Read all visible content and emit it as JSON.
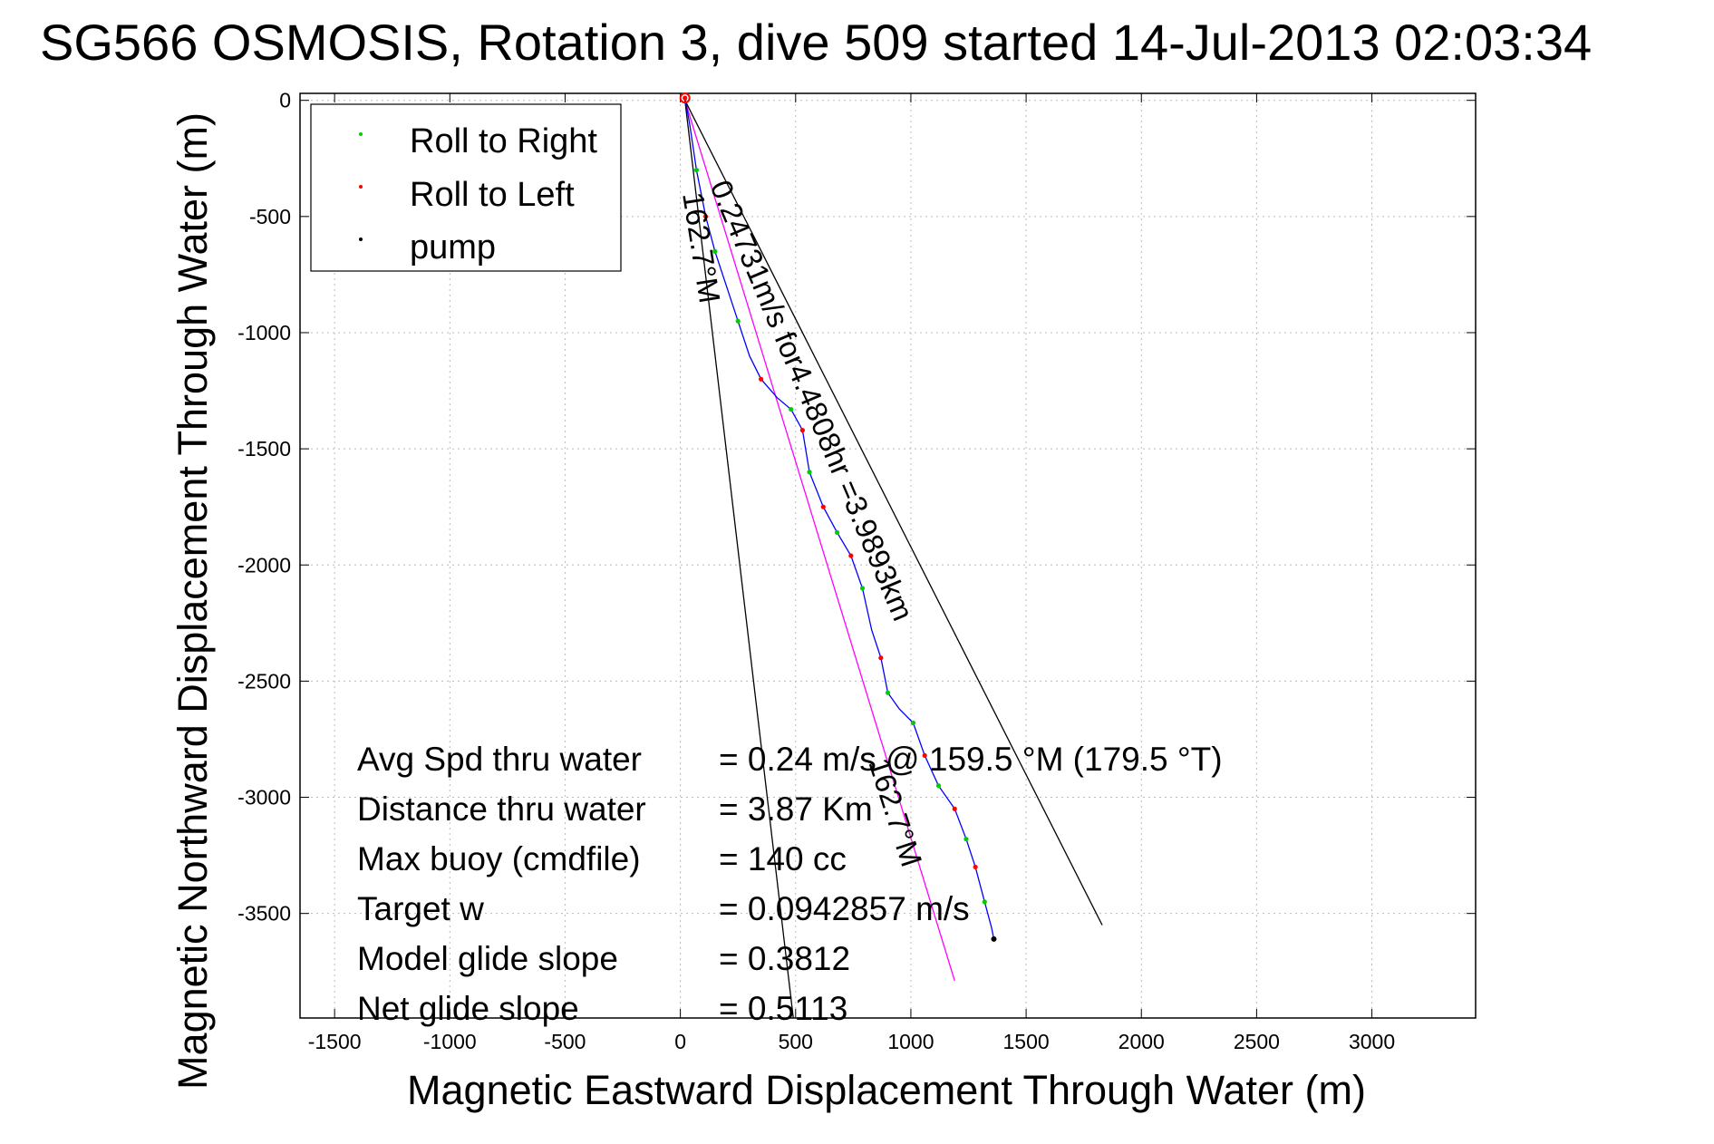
{
  "chart_data": {
    "type": "scatter",
    "title": "SG566 OSMOSIS, Rotation 3, dive 509 started 14-Jul-2013 02:03:34",
    "xlabel": "Magnetic Eastward Displacement Through Water (m)",
    "ylabel": "Magnetic Northward Displacement Through Water (m)",
    "xlim": [
      -1650,
      3450
    ],
    "ylim": [
      -3950,
      30
    ],
    "grid": true,
    "x_ticks": [
      -1500,
      -1000,
      -500,
      0,
      500,
      1000,
      1500,
      2000,
      2500,
      3000
    ],
    "y_ticks": [
      0,
      -500,
      -1000,
      -1500,
      -2000,
      -2500,
      -3000,
      -3500
    ],
    "legend": {
      "position": "top-left",
      "entries": [
        {
          "label": "Roll to Right",
          "color": "#00cc00"
        },
        {
          "label": "Roll to Left",
          "color": "#ff0000"
        },
        {
          "label": "pump",
          "color": "#000000"
        }
      ]
    },
    "track": {
      "color": "#0000ff",
      "points": [
        [
          20,
          10
        ],
        [
          40,
          -100
        ],
        [
          70,
          -300
        ],
        [
          110,
          -500
        ],
        [
          150,
          -650
        ],
        [
          200,
          -800
        ],
        [
          250,
          -950
        ],
        [
          300,
          -1100
        ],
        [
          350,
          -1200
        ],
        [
          420,
          -1280
        ],
        [
          480,
          -1330
        ],
        [
          530,
          -1420
        ],
        [
          560,
          -1600
        ],
        [
          620,
          -1750
        ],
        [
          680,
          -1860
        ],
        [
          740,
          -1960
        ],
        [
          790,
          -2100
        ],
        [
          830,
          -2280
        ],
        [
          870,
          -2400
        ],
        [
          900,
          -2550
        ],
        [
          950,
          -2620
        ],
        [
          1010,
          -2680
        ],
        [
          1060,
          -2820
        ],
        [
          1120,
          -2950
        ],
        [
          1190,
          -3050
        ],
        [
          1240,
          -3180
        ],
        [
          1280,
          -3300
        ],
        [
          1320,
          -3450
        ],
        [
          1350,
          -3560
        ],
        [
          1360,
          -3610
        ]
      ]
    },
    "roll_right": [
      [
        70,
        -300
      ],
      [
        150,
        -650
      ],
      [
        250,
        -950
      ],
      [
        480,
        -1330
      ],
      [
        560,
        -1600
      ],
      [
        680,
        -1860
      ],
      [
        790,
        -2100
      ],
      [
        900,
        -2550
      ],
      [
        1010,
        -2680
      ],
      [
        1120,
        -2950
      ],
      [
        1240,
        -3180
      ],
      [
        1320,
        -3450
      ]
    ],
    "roll_left": [
      [
        20,
        10
      ],
      [
        110,
        -500
      ],
      [
        350,
        -1200
      ],
      [
        530,
        -1420
      ],
      [
        620,
        -1750
      ],
      [
        740,
        -1960
      ],
      [
        870,
        -2400
      ],
      [
        1060,
        -2820
      ],
      [
        1190,
        -3050
      ],
      [
        1280,
        -3300
      ]
    ],
    "pump": [
      [
        1360,
        -3610
      ]
    ],
    "lines": [
      {
        "name": "",
        "color": "#ff00ff",
        "from": [
          20,
          0
        ],
        "to": [
          1190,
          -3790
        ]
      },
      {
        "name": "",
        "color": "#000000",
        "from": [
          20,
          0
        ],
        "to": [
          490,
          -3950
        ]
      },
      {
        "name": "",
        "color": "#000000",
        "from": [
          20,
          0
        ],
        "to": [
          1830,
          -3550
        ]
      }
    ],
    "annotations": {
      "current": "0.24731m/s for4.4808hr =3.9893km",
      "heading_left": "162.7°M",
      "heading_mid": "162.7°M"
    },
    "stats": [
      {
        "label": "Avg Spd thru water",
        "value": "=  0.24 m/s @ 159.5 °M (179.5 °T)"
      },
      {
        "label": "Distance thru water",
        "value": "=  3.87 Km"
      },
      {
        "label": "Max buoy (cmdfile)",
        "value": "= 140 cc"
      },
      {
        "label": "Target w",
        "value": "= 0.0942857 m/s"
      },
      {
        "label": "Model glide slope",
        "value": "= 0.3812"
      },
      {
        "label": "Net glide slope",
        "value": "= 0.5113"
      }
    ]
  }
}
